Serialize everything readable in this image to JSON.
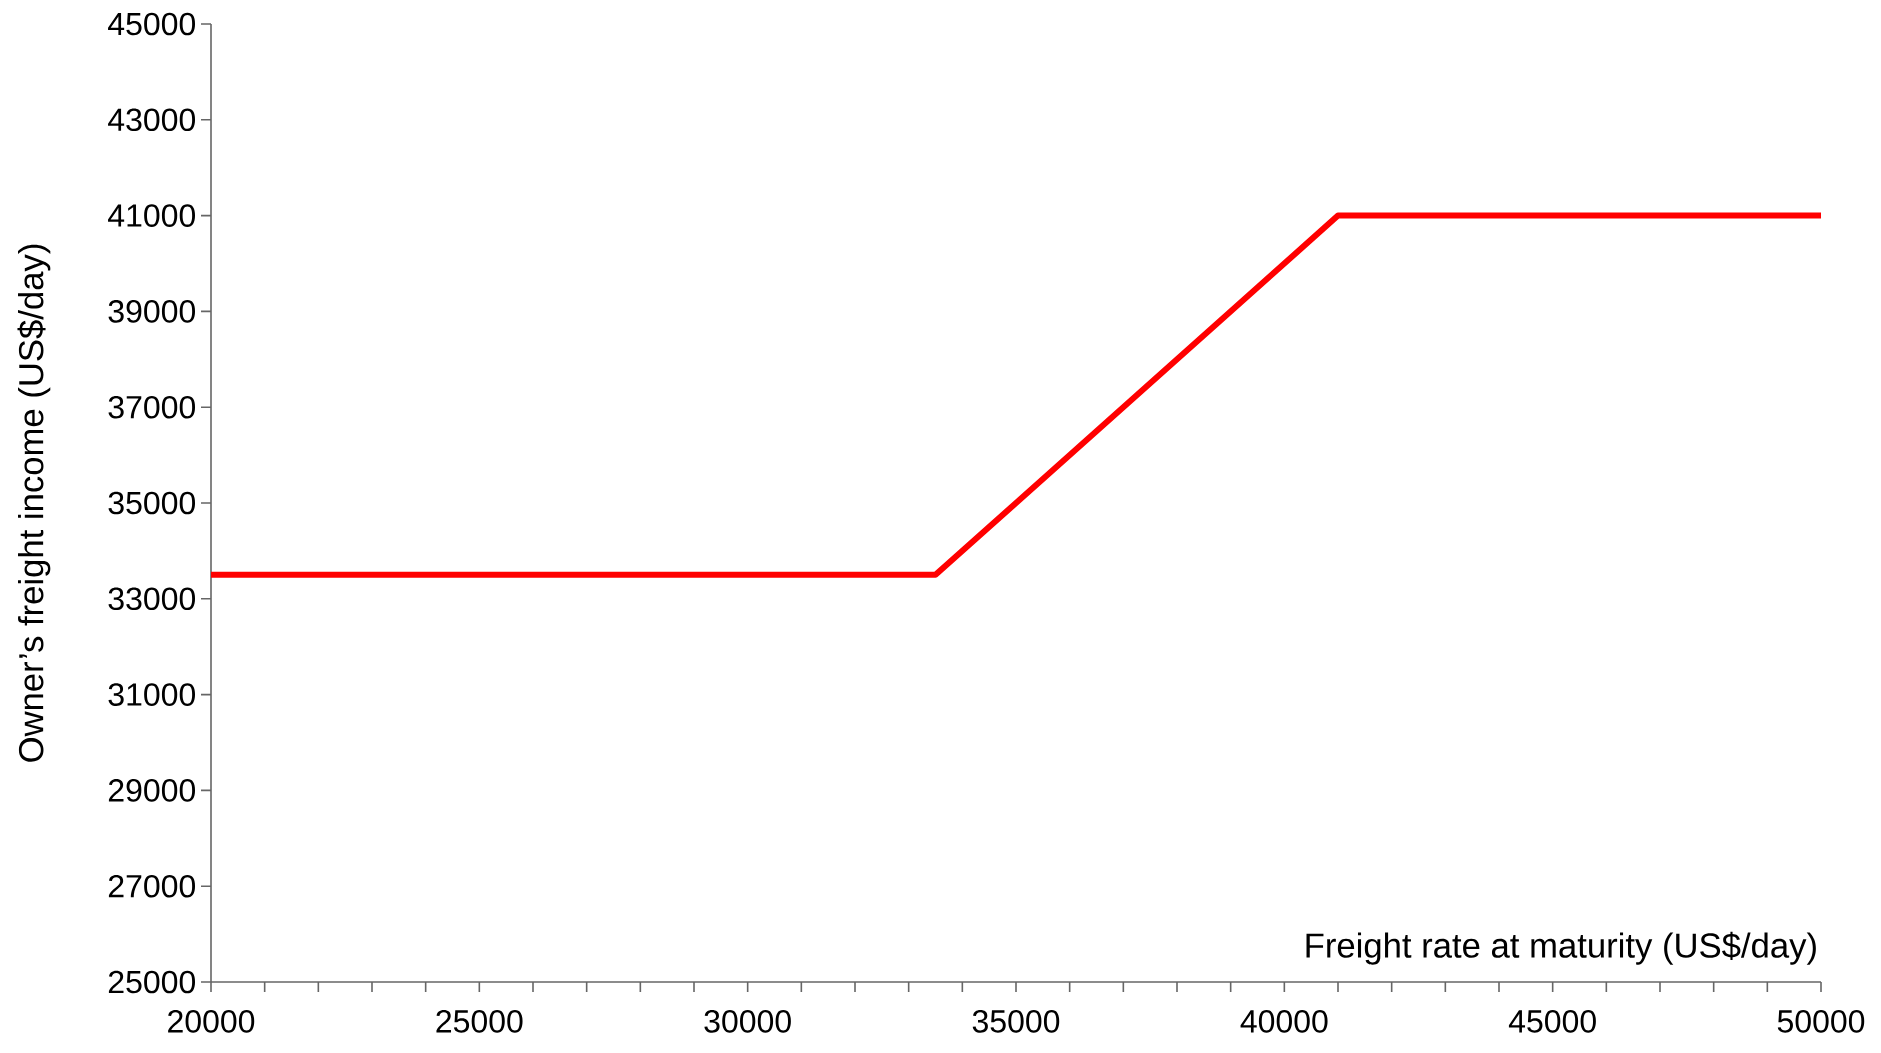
{
  "chart_data": {
    "type": "line",
    "x": [
      20000,
      33500,
      41000,
      50000
    ],
    "series": [
      {
        "color": "#ff0000",
        "values": [
          33500,
          33500,
          41000,
          41000
        ]
      }
    ],
    "xlabel": "Freight rate at maturity (US$/day)",
    "ylabel": "Owner’s freight income (US$/day)",
    "xlim": [
      20000,
      50000
    ],
    "ylim": [
      25000,
      45000
    ],
    "xticks": [
      20000,
      25000,
      30000,
      35000,
      40000,
      45000,
      50000
    ],
    "yticks": [
      25000,
      27000,
      29000,
      31000,
      33000,
      35000,
      37000,
      39000,
      41000,
      43000,
      45000
    ]
  }
}
